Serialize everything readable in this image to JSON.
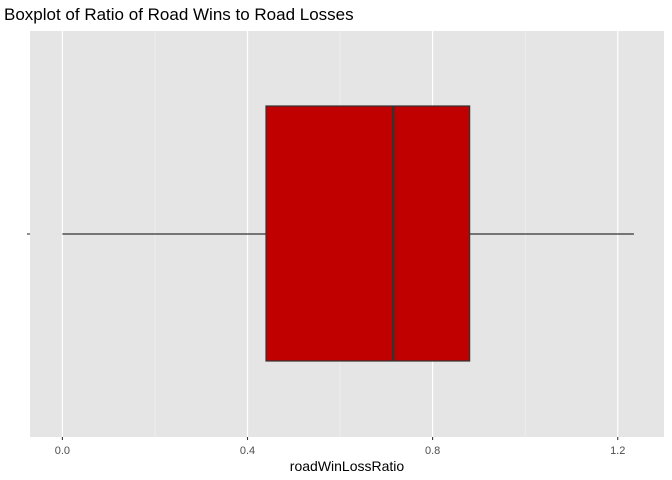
{
  "chart_data": {
    "type": "boxplot",
    "title": "Boxplot of Ratio of Road Wins to Road Losses",
    "xlabel": "roadWinLossRatio",
    "ylabel": "",
    "xlim": [
      -0.07,
      1.3
    ],
    "x_ticks": [
      0.0,
      0.4,
      0.8,
      1.2
    ],
    "x_tick_labels": [
      "0.0",
      "0.4",
      "0.8",
      "1.2"
    ],
    "x_minor_ticks": [
      0.2,
      0.6,
      1.0
    ],
    "grid": true,
    "series": [
      {
        "min": 0.0,
        "q1": 0.44,
        "median": 0.715,
        "q3": 0.88,
        "max": 1.235
      }
    ],
    "colors": {
      "box_fill": "#c00000",
      "box_stroke": "#333333",
      "panel_background": "#e5e5e5",
      "grid_major": "#ffffff",
      "grid_minor": "#f2f2f2"
    }
  }
}
